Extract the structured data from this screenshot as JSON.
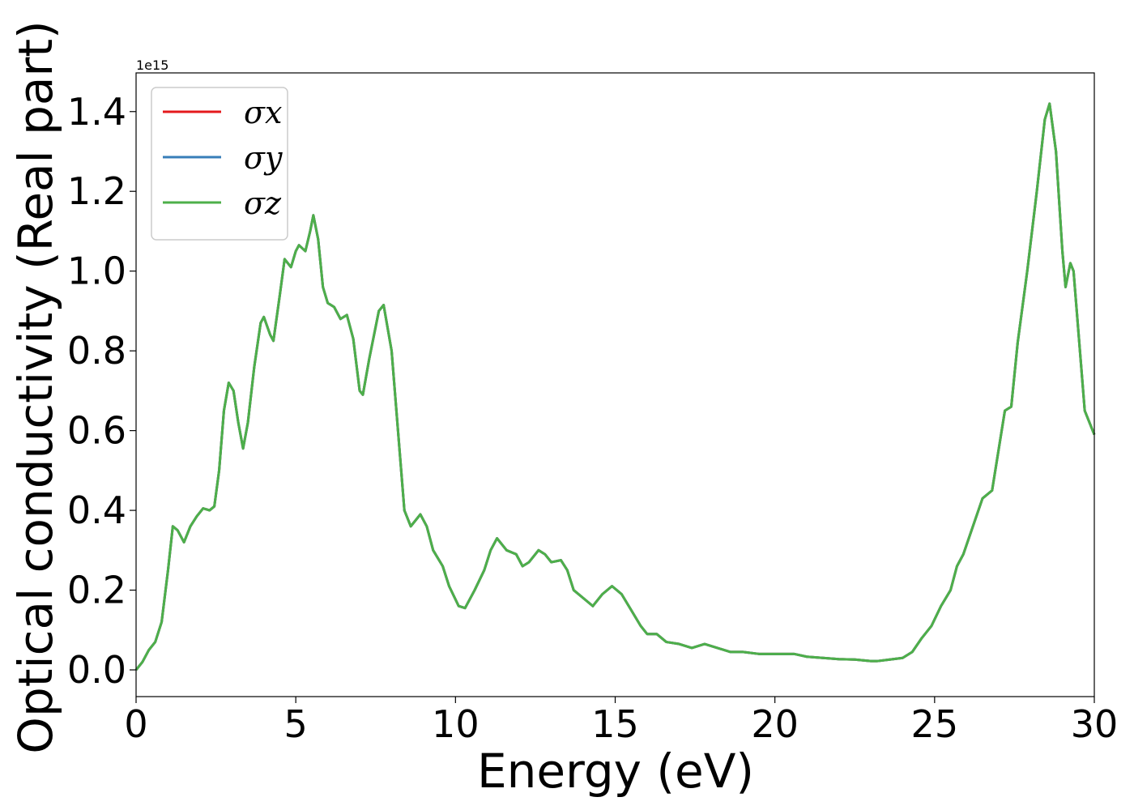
{
  "chart_data": {
    "type": "line",
    "xlabel": "Energy (eV)",
    "ylabel": "Optical conductivity (Real part)",
    "offset_label": "1e15",
    "xlim": [
      0,
      30
    ],
    "ylim": [
      -0.067,
      1.497
    ],
    "xticks": [
      0,
      5,
      10,
      15,
      20,
      25,
      30
    ],
    "yticks": [
      {
        "value": 0,
        "label": "0.0"
      },
      {
        "value": 0.2,
        "label": "0.2"
      },
      {
        "value": 0.4,
        "label": "0.4"
      },
      {
        "value": 0.6,
        "label": "0.6"
      },
      {
        "value": 0.8,
        "label": "0.8"
      },
      {
        "value": 1.0,
        "label": "1.0"
      },
      {
        "value": 1.2,
        "label": "1.2"
      },
      {
        "value": 1.4,
        "label": "1.4"
      }
    ],
    "legend": "upper left",
    "x": [
      0,
      0.2,
      0.4,
      0.6,
      0.8,
      1.0,
      1.15,
      1.3,
      1.5,
      1.7,
      1.9,
      2.1,
      2.3,
      2.45,
      2.6,
      2.75,
      2.9,
      3.05,
      3.2,
      3.35,
      3.5,
      3.7,
      3.9,
      4.0,
      4.2,
      4.3,
      4.5,
      4.65,
      4.85,
      5.0,
      5.1,
      5.3,
      5.45,
      5.55,
      5.7,
      5.85,
      6.0,
      6.2,
      6.4,
      6.6,
      6.8,
      7.0,
      7.1,
      7.3,
      7.6,
      7.75,
      8.0,
      8.2,
      8.4,
      8.6,
      8.9,
      9.1,
      9.3,
      9.6,
      9.8,
      10.1,
      10.3,
      10.6,
      10.9,
      11.1,
      11.3,
      11.6,
      11.9,
      12.1,
      12.3,
      12.6,
      12.8,
      13.0,
      13.3,
      13.5,
      13.7,
      14.0,
      14.3,
      14.6,
      14.9,
      15.2,
      15.5,
      15.8,
      16.0,
      16.3,
      16.6,
      17.0,
      17.4,
      17.8,
      18.2,
      18.6,
      19.0,
      19.5,
      20.0,
      20.6,
      21.0,
      21.5,
      22.0,
      22.5,
      23.0,
      23.2,
      23.6,
      24.0,
      24.3,
      24.6,
      24.9,
      25.2,
      25.5,
      25.7,
      25.9,
      26.2,
      26.5,
      26.8,
      27.0,
      27.2,
      27.4,
      27.6,
      27.9,
      28.2,
      28.45,
      28.6,
      28.8,
      29.0,
      29.1,
      29.25,
      29.35,
      29.5,
      29.7,
      29.9,
      30.0
    ],
    "series": [
      {
        "name": "σx",
        "color": "#e41a1c",
        "values": [
          0,
          0.02,
          0.05,
          0.07,
          0.12,
          0.25,
          0.36,
          0.35,
          0.32,
          0.36,
          0.385,
          0.405,
          0.4,
          0.41,
          0.5,
          0.65,
          0.72,
          0.7,
          0.62,
          0.555,
          0.62,
          0.76,
          0.87,
          0.885,
          0.84,
          0.825,
          0.94,
          1.03,
          1.01,
          1.05,
          1.065,
          1.05,
          1.1,
          1.14,
          1.08,
          0.96,
          0.92,
          0.91,
          0.88,
          0.89,
          0.83,
          0.7,
          0.69,
          0.78,
          0.9,
          0.915,
          0.8,
          0.6,
          0.4,
          0.36,
          0.39,
          0.36,
          0.3,
          0.26,
          0.21,
          0.16,
          0.155,
          0.2,
          0.25,
          0.3,
          0.33,
          0.3,
          0.29,
          0.26,
          0.27,
          0.3,
          0.29,
          0.27,
          0.275,
          0.25,
          0.2,
          0.18,
          0.16,
          0.19,
          0.21,
          0.19,
          0.15,
          0.11,
          0.09,
          0.09,
          0.07,
          0.065,
          0.055,
          0.065,
          0.055,
          0.045,
          0.045,
          0.04,
          0.04,
          0.04,
          0.033,
          0.03,
          0.027,
          0.026,
          0.022,
          0.022,
          0.026,
          0.03,
          0.045,
          0.08,
          0.11,
          0.16,
          0.2,
          0.26,
          0.29,
          0.36,
          0.43,
          0.45,
          0.55,
          0.65,
          0.66,
          0.82,
          1.0,
          1.2,
          1.38,
          1.42,
          1.3,
          1.05,
          0.96,
          1.02,
          1.0,
          0.85,
          0.65,
          0.61,
          0.59
        ]
      },
      {
        "name": "σy",
        "color": "#377eb8",
        "values": [
          0,
          0.02,
          0.05,
          0.07,
          0.12,
          0.25,
          0.36,
          0.35,
          0.32,
          0.36,
          0.385,
          0.405,
          0.4,
          0.41,
          0.5,
          0.65,
          0.72,
          0.7,
          0.62,
          0.555,
          0.62,
          0.76,
          0.87,
          0.885,
          0.84,
          0.825,
          0.94,
          1.03,
          1.01,
          1.05,
          1.065,
          1.05,
          1.1,
          1.14,
          1.08,
          0.96,
          0.92,
          0.91,
          0.88,
          0.89,
          0.83,
          0.7,
          0.69,
          0.78,
          0.9,
          0.915,
          0.8,
          0.6,
          0.4,
          0.36,
          0.39,
          0.36,
          0.3,
          0.26,
          0.21,
          0.16,
          0.155,
          0.2,
          0.25,
          0.3,
          0.33,
          0.3,
          0.29,
          0.26,
          0.27,
          0.3,
          0.29,
          0.27,
          0.275,
          0.25,
          0.2,
          0.18,
          0.16,
          0.19,
          0.21,
          0.19,
          0.15,
          0.11,
          0.09,
          0.09,
          0.07,
          0.065,
          0.055,
          0.065,
          0.055,
          0.045,
          0.045,
          0.04,
          0.04,
          0.04,
          0.033,
          0.03,
          0.027,
          0.026,
          0.022,
          0.022,
          0.026,
          0.03,
          0.045,
          0.08,
          0.11,
          0.16,
          0.2,
          0.26,
          0.29,
          0.36,
          0.43,
          0.45,
          0.55,
          0.65,
          0.66,
          0.82,
          1.0,
          1.2,
          1.38,
          1.42,
          1.3,
          1.05,
          0.96,
          1.02,
          1.0,
          0.85,
          0.65,
          0.61,
          0.59
        ]
      },
      {
        "name": "σz",
        "color": "#4daf4a",
        "values": [
          0,
          0.02,
          0.05,
          0.07,
          0.12,
          0.25,
          0.36,
          0.35,
          0.32,
          0.36,
          0.385,
          0.405,
          0.4,
          0.41,
          0.5,
          0.65,
          0.72,
          0.7,
          0.62,
          0.555,
          0.62,
          0.76,
          0.87,
          0.885,
          0.84,
          0.825,
          0.94,
          1.03,
          1.01,
          1.05,
          1.065,
          1.05,
          1.1,
          1.14,
          1.08,
          0.96,
          0.92,
          0.91,
          0.88,
          0.89,
          0.83,
          0.7,
          0.69,
          0.78,
          0.9,
          0.915,
          0.8,
          0.6,
          0.4,
          0.36,
          0.39,
          0.36,
          0.3,
          0.26,
          0.21,
          0.16,
          0.155,
          0.2,
          0.25,
          0.3,
          0.33,
          0.3,
          0.29,
          0.26,
          0.27,
          0.3,
          0.29,
          0.27,
          0.275,
          0.25,
          0.2,
          0.18,
          0.16,
          0.19,
          0.21,
          0.19,
          0.15,
          0.11,
          0.09,
          0.09,
          0.07,
          0.065,
          0.055,
          0.065,
          0.055,
          0.045,
          0.045,
          0.04,
          0.04,
          0.04,
          0.033,
          0.03,
          0.027,
          0.026,
          0.022,
          0.022,
          0.026,
          0.03,
          0.045,
          0.08,
          0.11,
          0.16,
          0.2,
          0.26,
          0.29,
          0.36,
          0.43,
          0.45,
          0.55,
          0.65,
          0.66,
          0.82,
          1.0,
          1.2,
          1.38,
          1.42,
          1.3,
          1.05,
          0.96,
          1.02,
          1.0,
          0.85,
          0.65,
          0.61,
          0.59
        ]
      }
    ]
  }
}
